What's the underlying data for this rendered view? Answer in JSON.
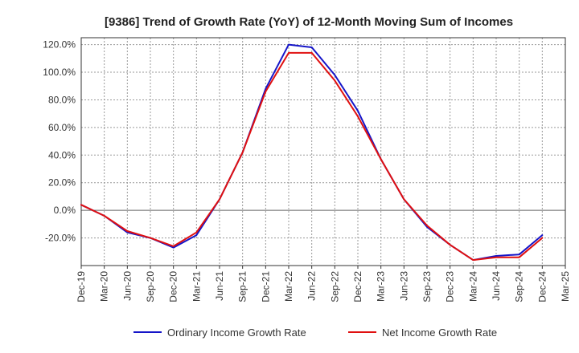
{
  "chart_data": {
    "type": "line",
    "title": "[9386]  Trend of Growth Rate (YoY) of 12-Month Moving Sum of Incomes",
    "xlabel": "",
    "ylabel": "",
    "x_tick_labels": [
      "Dec-19",
      "Mar-20",
      "Jun-20",
      "Sep-20",
      "Dec-20",
      "Mar-21",
      "Jun-21",
      "Sep-21",
      "Dec-21",
      "Mar-22",
      "Jun-22",
      "Sep-22",
      "Dec-22",
      "Mar-23",
      "Jun-23",
      "Sep-23",
      "Dec-23",
      "Mar-24",
      "Jun-24",
      "Sep-24",
      "Dec-24",
      "Mar-25"
    ],
    "y_ticks": [
      -20,
      0,
      20,
      40,
      60,
      80,
      100,
      120
    ],
    "y_tick_labels": [
      "-20.0%",
      "0.0%",
      "20.0%",
      "40.0%",
      "60.0%",
      "80.0%",
      "100.0%",
      "120.0%"
    ],
    "ylim": [
      -40,
      125
    ],
    "grid": true,
    "legend_position": "bottom",
    "x": [
      "Dec-19",
      "Mar-20",
      "Jun-20",
      "Sep-20",
      "Dec-20",
      "Mar-21",
      "Jun-21",
      "Sep-21",
      "Dec-21",
      "Mar-22",
      "Jun-22",
      "Sep-22",
      "Dec-22",
      "Mar-23",
      "Jun-23",
      "Sep-23",
      "Dec-23",
      "Mar-24",
      "Jun-24",
      "Sep-24",
      "Dec-24"
    ],
    "series": [
      {
        "name": "Ordinary Income Growth Rate",
        "color": "#1515c8",
        "values": [
          4,
          -4,
          -16,
          -20,
          -27,
          -18,
          8,
          42,
          88,
          120,
          118,
          98,
          72,
          37,
          8,
          -12,
          -25,
          -36,
          -33,
          -32,
          -18
        ]
      },
      {
        "name": "Net Income Growth Rate",
        "color": "#e01010",
        "values": [
          4,
          -4,
          -15,
          -20,
          -26,
          -16,
          8,
          42,
          86,
          114,
          114,
          94,
          68,
          37,
          8,
          -11,
          -25,
          -36,
          -34,
          -34,
          -20
        ]
      }
    ]
  }
}
